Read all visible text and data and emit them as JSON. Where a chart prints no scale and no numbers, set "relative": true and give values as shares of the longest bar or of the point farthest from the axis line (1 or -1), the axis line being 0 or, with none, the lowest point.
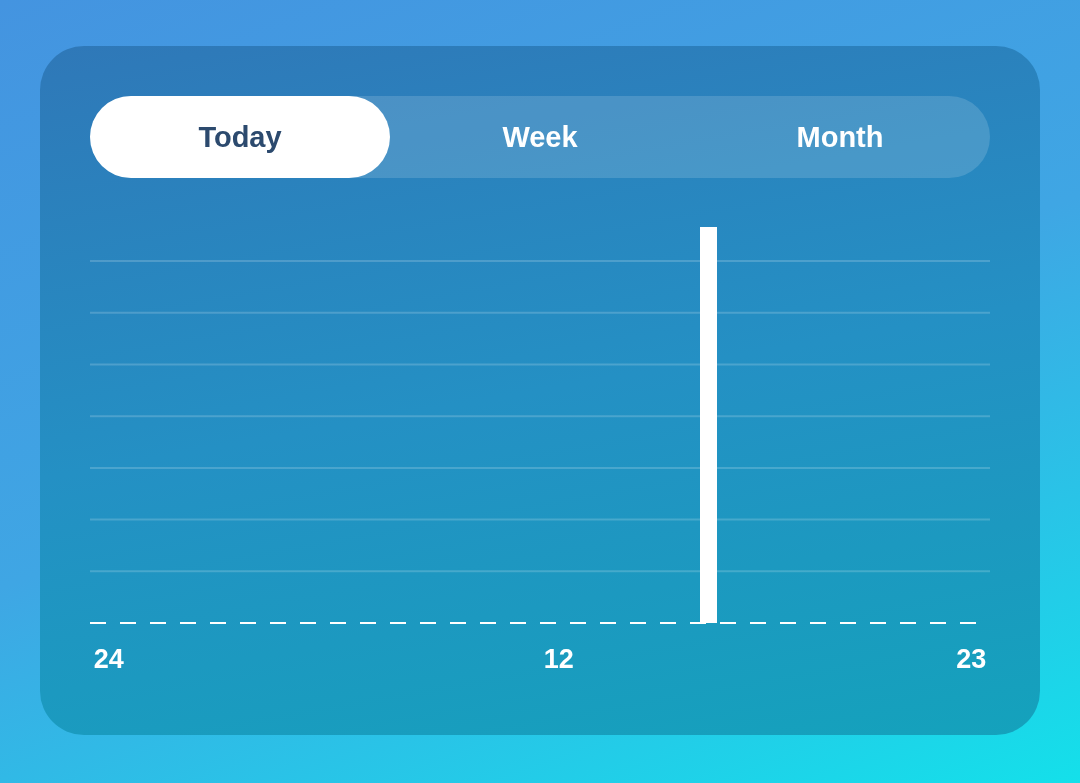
{
  "chart_data": {
    "type": "bar",
    "relative": true,
    "grid": "y",
    "categories": [
      "24",
      null,
      null,
      null,
      null,
      null,
      null,
      null,
      null,
      null,
      null,
      null,
      "12",
      null,
      null,
      null,
      null,
      null,
      null,
      null,
      null,
      null,
      null,
      "23"
    ],
    "values": [
      null,
      null,
      null,
      null,
      null,
      null,
      null,
      null,
      null,
      null,
      null,
      null,
      null,
      null,
      null,
      null,
      1,
      null,
      null,
      null,
      null,
      null,
      null,
      null
    ],
    "color": "#ffffff",
    "annotations": [
      "Today",
      "Week",
      "Month"
    ]
  }
}
